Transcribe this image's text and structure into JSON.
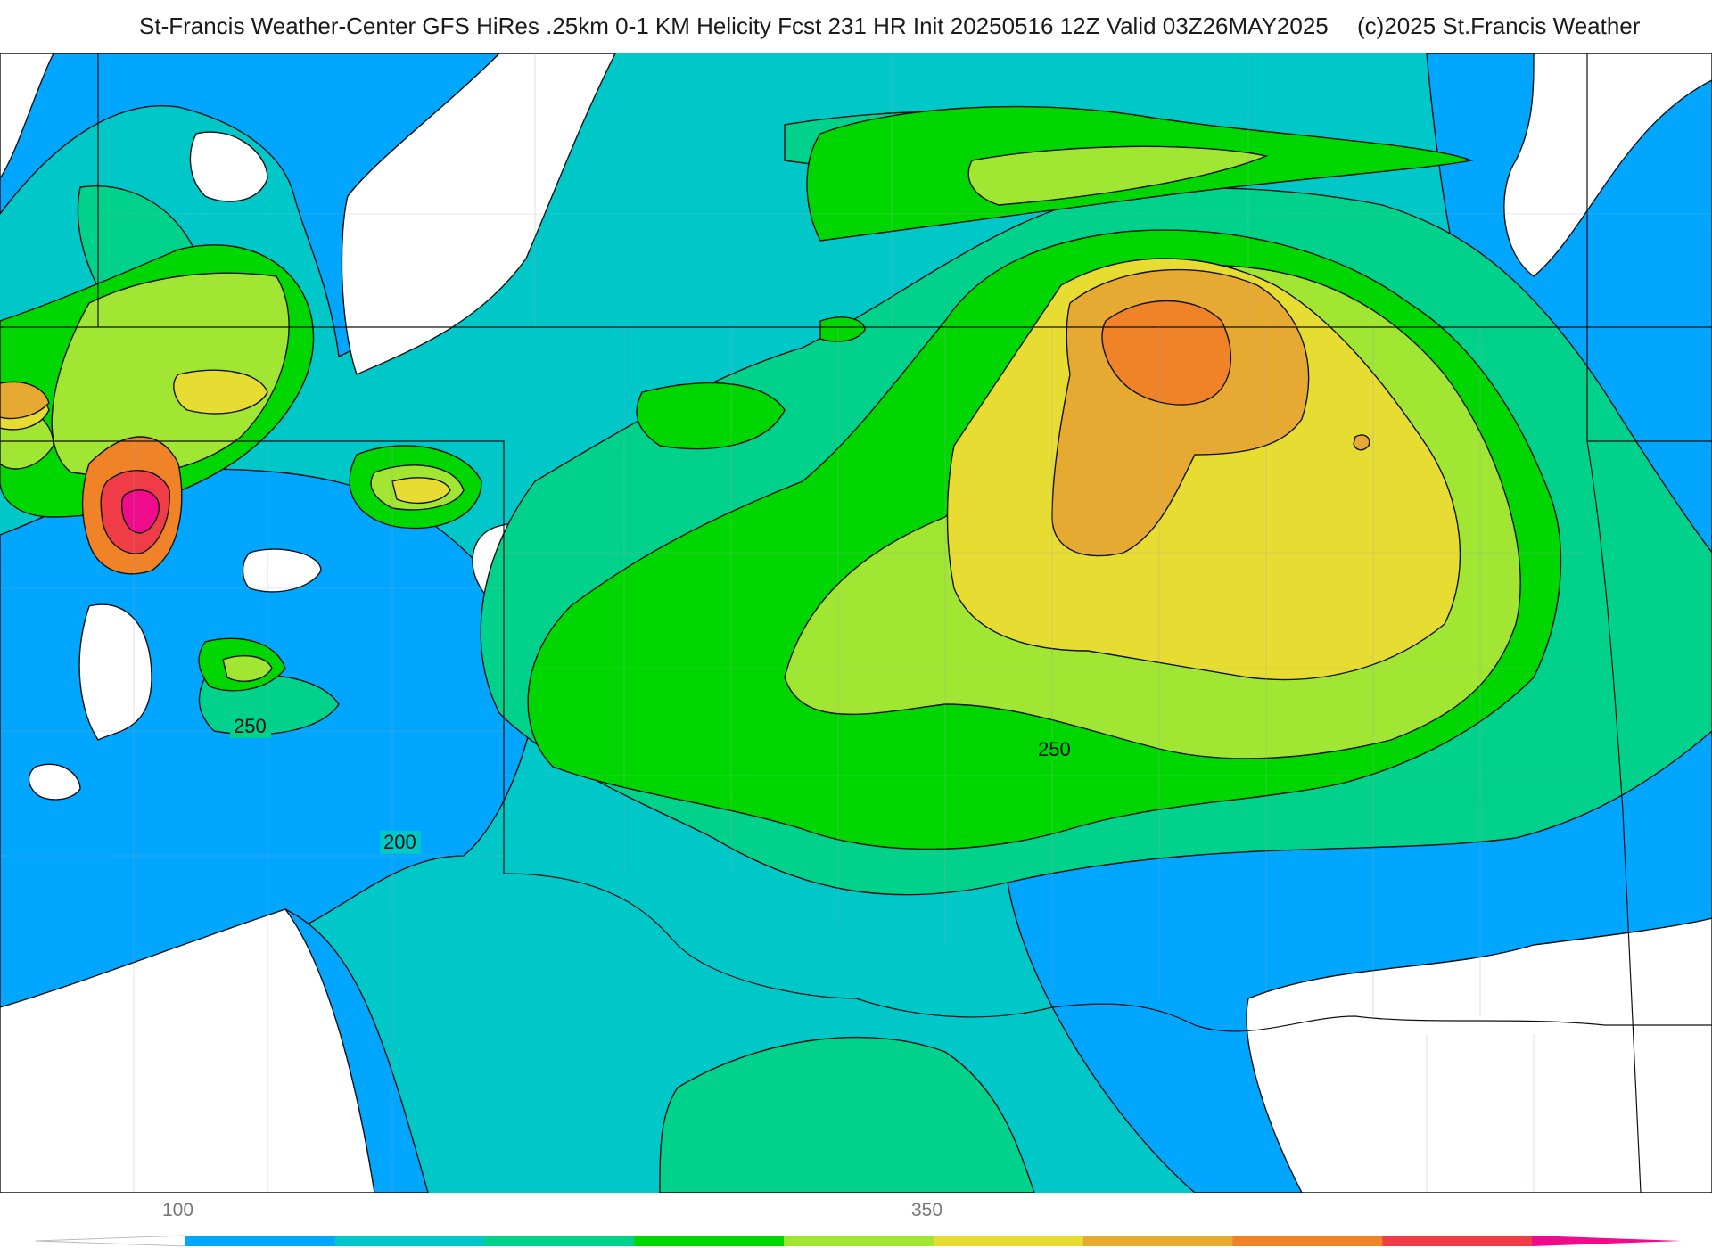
{
  "header": {
    "title": "St-Francis Weather-Center GFS HiRes .25km 0-1 KM Helicity Fcst 231 HR Init 20250516 12Z  Valid 03Z26MAY2025",
    "copyright": "(c)2025 St.Francis Weather"
  },
  "map": {
    "contour_labels": [
      "250",
      "200",
      "250"
    ],
    "colors": {
      "white": "#ffffff",
      "blue": "#00a6ff",
      "teal": "#00c8c8",
      "seagreen": "#00d28c",
      "green": "#00d700",
      "yellowgreen": "#a0e632",
      "yellow": "#e6dc32",
      "gold": "#e6aa32",
      "orange": "#f08228",
      "red": "#f03c46",
      "magenta": "#f00a8c"
    }
  },
  "colorbar": {
    "tick_labels": [
      "100",
      "350"
    ],
    "segments": [
      "#ffffff",
      "#00a6ff",
      "#00c8c8",
      "#00d28c",
      "#00d700",
      "#a0e632",
      "#e6dc32",
      "#e6aa32",
      "#f08228",
      "#f03c46",
      "#f00a8c"
    ]
  }
}
